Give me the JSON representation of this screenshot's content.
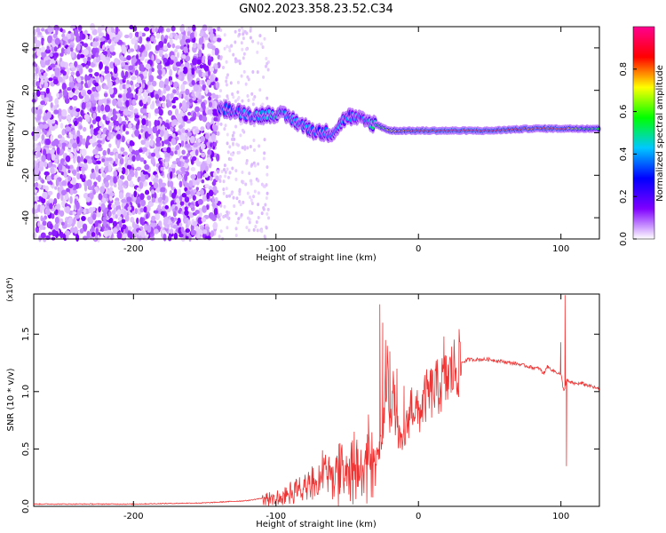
{
  "figure_title": "GN02.2023.358.23.52.C34",
  "chart_data": [
    {
      "type": "heatmap",
      "xlabel": "Height of straight line (km)",
      "ylabel": "Frequency (Hz)",
      "xlim": [
        -270,
        127
      ],
      "ylim": [
        -50,
        50
      ],
      "xticks": [
        -200,
        -100,
        0,
        100
      ],
      "yticks": [
        -40,
        -20,
        0,
        20,
        40
      ],
      "colorbar": {
        "label": "Normalized spectral amplitude",
        "range": [
          0,
          1
        ],
        "ticks": [
          0.0,
          0.2,
          0.4,
          0.6,
          0.8
        ],
        "colormap": [
          "#ffffff",
          "#7f00ff",
          "#0000ff",
          "#00c8ff",
          "#00ff00",
          "#ffff00",
          "#ff0000",
          "#ff0090"
        ]
      },
      "background_noise": {
        "x_range": [
          -270,
          -140
        ],
        "level": 0.1
      },
      "ridge": [
        {
          "x": -140,
          "freq": 12,
          "amp": 0.3
        },
        {
          "x": -130,
          "freq": 10,
          "amp": 0.35
        },
        {
          "x": -115,
          "freq": 8,
          "amp": 0.4
        },
        {
          "x": -100,
          "freq": 9,
          "amp": 0.45
        },
        {
          "x": -90,
          "freq": 7,
          "amp": 0.4
        },
        {
          "x": -80,
          "freq": 3,
          "amp": 0.4
        },
        {
          "x": -70,
          "freq": 0,
          "amp": 0.35
        },
        {
          "x": -60,
          "freq": 0,
          "amp": 0.4
        },
        {
          "x": -50,
          "freq": 8,
          "amp": 0.35
        },
        {
          "x": -40,
          "freq": 6,
          "amp": 0.35
        },
        {
          "x": -30,
          "freq": 4,
          "amp": 0.5
        },
        {
          "x": -20,
          "freq": 1,
          "amp": 0.7
        },
        {
          "x": -10,
          "freq": 1,
          "amp": 0.8
        },
        {
          "x": 0,
          "freq": 1,
          "amp": 0.85
        },
        {
          "x": 20,
          "freq": 1,
          "amp": 0.9
        },
        {
          "x": 50,
          "freq": 1,
          "amp": 0.88
        },
        {
          "x": 80,
          "freq": 2,
          "amp": 0.8
        },
        {
          "x": 100,
          "freq": 2,
          "amp": 0.85
        },
        {
          "x": 115,
          "freq": 2,
          "amp": 0.6
        },
        {
          "x": 127,
          "freq": 2,
          "amp": 0.55
        }
      ]
    },
    {
      "type": "line",
      "xlabel": "Height of straight line (km)",
      "ylabel": "SNR (10 * v/v)",
      "yscale_note": "(x10⁴)",
      "xlim": [
        -270,
        127
      ],
      "ylim": [
        0,
        1.85
      ],
      "xticks": [
        -200,
        -100,
        0,
        100
      ],
      "yticks": [
        0.0,
        0.5,
        1.0,
        1.5
      ],
      "color": "#ee3333",
      "series": [
        {
          "x": [
            -270,
            -200,
            -150,
            -120,
            -110,
            -100,
            -90,
            -80,
            -70,
            -65,
            -60,
            -55,
            -50,
            -45,
            -40,
            -35,
            -30,
            -25,
            -22,
            -20,
            -18,
            -15,
            -12,
            -10,
            -8,
            -5,
            0,
            5,
            10,
            15,
            20,
            25,
            30,
            35,
            40,
            50,
            60,
            70,
            80,
            85,
            88,
            90,
            95,
            100,
            102,
            104,
            106,
            110,
            115,
            120,
            127
          ],
          "y": [
            0.02,
            0.02,
            0.03,
            0.05,
            0.07,
            0.1,
            0.15,
            0.2,
            0.3,
            0.4,
            0.35,
            0.4,
            0.3,
            0.45,
            0.35,
            0.5,
            0.4,
            0.6,
            1.2,
            0.8,
            1.0,
            0.7,
            0.5,
            0.6,
            0.7,
            0.9,
            0.8,
            0.95,
            1.0,
            1.05,
            1.1,
            1.2,
            1.25,
            1.28,
            1.28,
            1.28,
            1.26,
            1.24,
            1.21,
            1.2,
            1.15,
            1.22,
            1.18,
            1.15,
            1.0,
            1.1,
            1.08,
            1.07,
            1.07,
            1.05,
            1.02
          ]
        }
      ],
      "peaks": [
        {
          "x": -27,
          "y": 1.76
        },
        {
          "x": -25,
          "y": 1.6
        },
        {
          "x": -23,
          "y": 1.45
        },
        {
          "x": -20,
          "y": 1.35
        },
        {
          "x": -15,
          "y": 1.2
        },
        {
          "x": -10,
          "y": 1.05
        },
        {
          "x": 18,
          "y": 1.48
        },
        {
          "x": 103,
          "y": 1.84
        },
        {
          "x": 104,
          "y": 0.35
        },
        {
          "x": 100,
          "y": 1.43
        },
        {
          "x": 88,
          "y": 1.17
        },
        {
          "x": -55,
          "y": 0.55
        },
        {
          "x": -45,
          "y": 0.65
        },
        {
          "x": -35,
          "y": 0.8
        }
      ]
    }
  ]
}
